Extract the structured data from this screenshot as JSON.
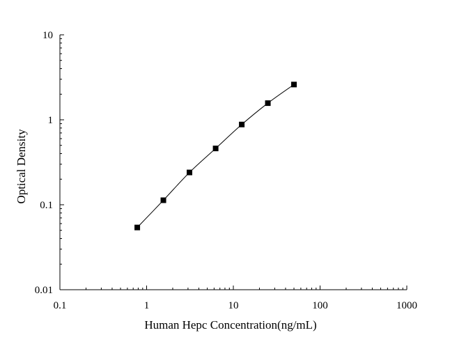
{
  "chart_data": {
    "type": "scatter",
    "title": "",
    "xlabel": "Human Hepc Concentration(ng/mL)",
    "ylabel": "Optical Density",
    "xscale": "log",
    "yscale": "log",
    "xlim": [
      0.1,
      1000
    ],
    "ylim": [
      0.01,
      10
    ],
    "xticks": [
      {
        "value": 0.1,
        "label": "0.1"
      },
      {
        "value": 1,
        "label": "1"
      },
      {
        "value": 10,
        "label": "10"
      },
      {
        "value": 100,
        "label": "100"
      },
      {
        "value": 1000,
        "label": "1000"
      }
    ],
    "yticks": [
      {
        "value": 0.01,
        "label": "0.01"
      },
      {
        "value": 0.1,
        "label": "0.1"
      },
      {
        "value": 1,
        "label": "1"
      },
      {
        "value": 10,
        "label": "10"
      }
    ],
    "grid": false,
    "legend": "none",
    "marker": "square",
    "series": [
      {
        "x": [
          0.78,
          1.56,
          3.12,
          6.25,
          12.5,
          25,
          50
        ],
        "y": [
          0.054,
          0.113,
          0.24,
          0.46,
          0.88,
          1.57,
          2.6
        ]
      }
    ],
    "colors": {
      "marker": "#000000",
      "line": "#000000",
      "axis": "#000000"
    }
  }
}
